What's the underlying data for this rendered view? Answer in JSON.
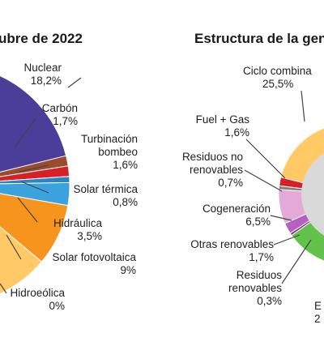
{
  "colors": {
    "nuclear": "#4b3e9b",
    "carbon": "#9a4b2c",
    "turbinacion": "#d71f28",
    "solar_termica": "#2a84c6",
    "hidraulica": "#3aa3dd",
    "solar_fotovoltaica": "#f7941d",
    "ciclo": "#ffc966",
    "fuel": "#d71f28",
    "residuos_no": "#7f7f7f",
    "cogeneracion": "#e5a9d8",
    "otras": "#b65fc2",
    "residuos_ren": "#7a2e8a",
    "eolica": "#62c24a",
    "hole": "#d9d9d9",
    "leader": "#444444"
  },
  "chart_data": [
    {
      "type": "pie",
      "title": "ubre de 2022",
      "slices": [
        {
          "label": "Nuclear",
          "value": 18.2,
          "value_text": "18,2%"
        },
        {
          "label": "Carbón",
          "value": 1.7,
          "value_text": "1,7%"
        },
        {
          "label": "Turbinación bombeo",
          "label_lines": [
            "Turbinación",
            "bombeo"
          ],
          "value": 1.6,
          "value_text": "1,6%"
        },
        {
          "label": "Solar térmica",
          "value": 0.8,
          "value_text": "0,8%"
        },
        {
          "label": "Hidráulica",
          "value": 3.5,
          "value_text": "3,5%"
        },
        {
          "label": "Solar fotovoltaica",
          "value": 9,
          "value_text": "9%"
        },
        {
          "label": "Hidroeólica",
          "value": 0,
          "value_text": "0%"
        }
      ]
    },
    {
      "type": "pie",
      "title": "Estructura de la gen",
      "slices": [
        {
          "label": "Ciclo combina",
          "value": 25.5,
          "value_text": "25,5%"
        },
        {
          "label": "Fuel + Gas",
          "value": 1.6,
          "value_text": "1,6%"
        },
        {
          "label": "Residuos no renovables",
          "label_lines": [
            "Residuos no",
            "renovables"
          ],
          "value": 0.7,
          "value_text": "0,7%"
        },
        {
          "label": "Cogeneración",
          "value": 6.5,
          "value_text": "6,5%"
        },
        {
          "label": "Otras renovables",
          "value": 1.7,
          "value_text": "1,7%"
        },
        {
          "label": "Residuos renovables",
          "label_lines": [
            "Residuos",
            "renovables"
          ],
          "value": 0.3,
          "value_text": "0,3%"
        },
        {
          "label": "E",
          "value_text": "2"
        }
      ]
    }
  ]
}
